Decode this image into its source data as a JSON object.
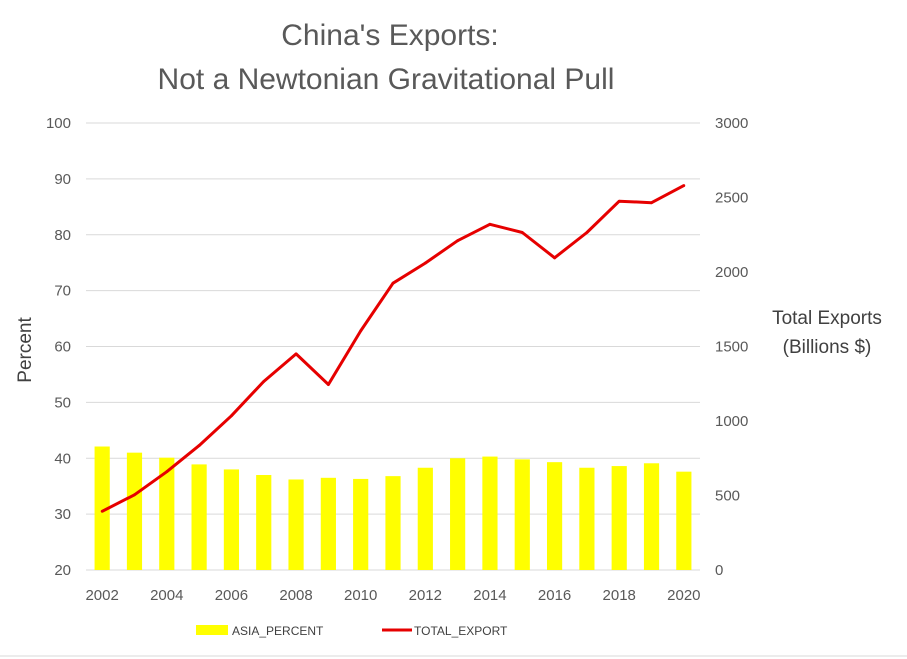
{
  "chart_data": {
    "type": "bar",
    "title_lines": [
      "China's Exports:",
      "Not a Newtonian Gravitational Pull"
    ],
    "ylabel": "Percent",
    "y2label_lines": [
      "Total Exports",
      "(Billions $)"
    ],
    "x_tick_labels": [
      "2002",
      "2004",
      "2006",
      "2008",
      "2010",
      "2012",
      "2014",
      "2016",
      "2018",
      "2020"
    ],
    "categories": [
      2002,
      2003,
      2004,
      2005,
      2006,
      2007,
      2008,
      2009,
      2010,
      2011,
      2012,
      2013,
      2014,
      2015,
      2016,
      2017,
      2018,
      2019,
      2020
    ],
    "ylim": [
      20,
      100
    ],
    "y_ticks": [
      20,
      30,
      40,
      50,
      60,
      70,
      80,
      90,
      100
    ],
    "y2lim": [
      0,
      3000
    ],
    "y2_ticks": [
      0,
      500,
      1000,
      1500,
      2000,
      2500,
      3000
    ],
    "grid": true,
    "legend_position": "bottom",
    "series": [
      {
        "name": "ASIA_PERCENT",
        "kind": "bar",
        "axis": "left",
        "color": "#ffff00",
        "values": [
          42.1,
          41.0,
          40.1,
          38.9,
          38.0,
          37.0,
          36.2,
          36.5,
          36.3,
          36.8,
          38.3,
          40.0,
          40.3,
          39.8,
          39.3,
          38.3,
          38.6,
          39.1,
          37.6
        ]
      },
      {
        "name": "TOTAL_EXPORT",
        "kind": "line",
        "axis": "right",
        "color": "#e60000",
        "values": [
          394,
          505,
          660,
          835,
          1035,
          1265,
          1450,
          1245,
          1605,
          1925,
          2060,
          2210,
          2320,
          2265,
          2095,
          2265,
          2475,
          2465,
          2580
        ]
      }
    ]
  }
}
